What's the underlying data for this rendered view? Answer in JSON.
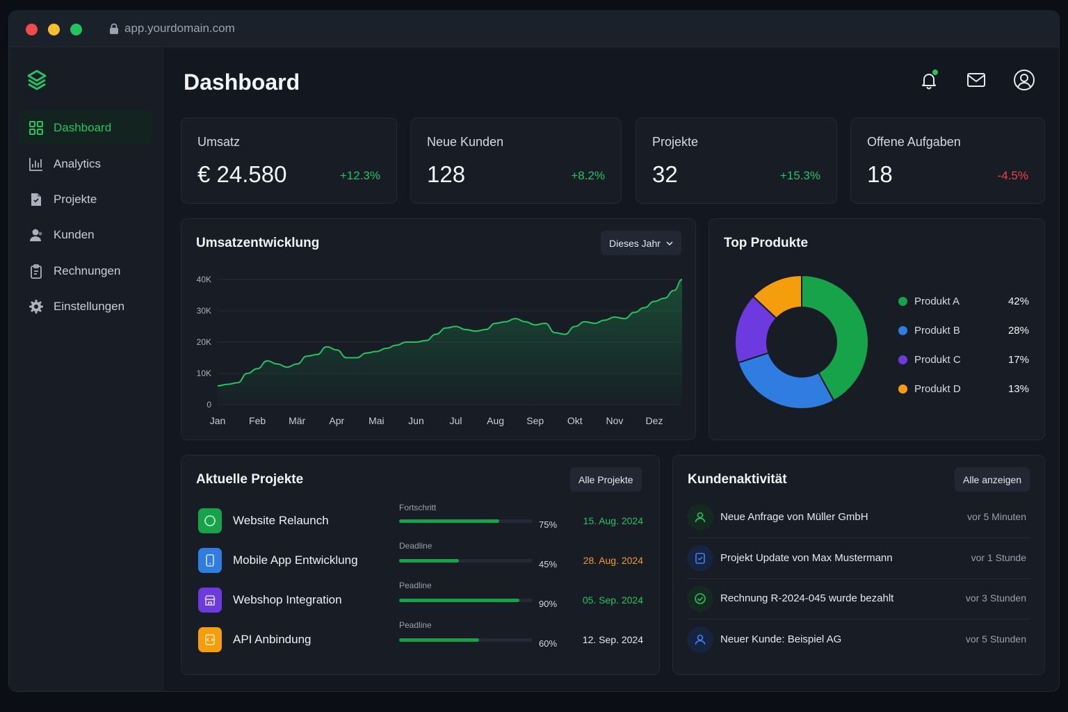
{
  "browser": {
    "url": "app.yourdomain.com"
  },
  "sidebar": {
    "items": [
      {
        "label": "Dashboard",
        "icon": "grid-icon"
      },
      {
        "label": "Analytics",
        "icon": "bar-chart-icon"
      },
      {
        "label": "Projekte",
        "icon": "folder-icon"
      },
      {
        "label": "Kunden",
        "icon": "users-icon"
      },
      {
        "label": "Rechnungen",
        "icon": "clipboard-icon"
      },
      {
        "label": "Einstellungen",
        "icon": "gear-icon"
      }
    ]
  },
  "header": {
    "title": "Dashboard"
  },
  "stats": [
    {
      "label": "Umsatz",
      "value": "€ 24.580",
      "change": "+12.3%"
    },
    {
      "label": "Neue Kunden",
      "value": "128",
      "change": "+8.2%"
    },
    {
      "label": "Projekte",
      "value": "32",
      "change": "+15.3%"
    },
    {
      "label": "Offene Aufgaben",
      "value": "18",
      "change": "-4.5%"
    }
  ],
  "colors": {
    "accent": "#22c55e",
    "positive": "#22c55e",
    "negative": "#ef4444",
    "warning": "#f59e0b"
  },
  "revenue_chart": {
    "title": "Umsatzentwicklung",
    "filter": "Dieses Jahr"
  },
  "products_chart": {
    "title": "Top Produkte"
  },
  "chart_data": [
    {
      "type": "area",
      "title": "Umsatzentwicklung",
      "categories": [
        "Jan",
        "Feb",
        "Mär",
        "Apr",
        "Mai",
        "Jun",
        "Jul",
        "Aug",
        "Sep",
        "Okt",
        "Nov",
        "Dez"
      ],
      "ytick_labels": [
        "0",
        "10K",
        "20K",
        "30K",
        "40K"
      ],
      "ylim": [
        0,
        40000
      ],
      "x": [
        0,
        0.25,
        0.5,
        0.75,
        1,
        1.25,
        1.5,
        1.75,
        2,
        2.25,
        2.5,
        2.75,
        3,
        3.25,
        3.5,
        3.75,
        4,
        4.25,
        4.5,
        4.75,
        5,
        5.25,
        5.5,
        5.75,
        6,
        6.25,
        6.5,
        6.75,
        7,
        7.25,
        7.5,
        7.75,
        8,
        8.25,
        8.5,
        8.75,
        9,
        9.25,
        9.5,
        9.75,
        10,
        10.25,
        10.5,
        10.75,
        11,
        11.25,
        11.5,
        11.7
      ],
      "values": [
        6000,
        6500,
        7000,
        10000,
        11500,
        14000,
        13000,
        12000,
        13000,
        15500,
        16000,
        18500,
        17500,
        15000,
        15000,
        16500,
        17000,
        18000,
        19000,
        20000,
        20000,
        20500,
        22500,
        24500,
        25000,
        24000,
        23500,
        24000,
        26000,
        26500,
        27500,
        26500,
        25500,
        26000,
        23000,
        22500,
        25000,
        26500,
        26000,
        27000,
        28000,
        27500,
        29500,
        31000,
        33000,
        34000,
        36500,
        40000
      ],
      "grid": true,
      "color": "#22c55e"
    },
    {
      "type": "pie",
      "title": "Top Produkte",
      "series": [
        {
          "name": "Produkt A",
          "value": 42,
          "label": "42%",
          "color": "#16a34a"
        },
        {
          "name": "Produkt B",
          "value": 28,
          "label": "28%",
          "color": "#2f7de1"
        },
        {
          "name": "Produkt C",
          "value": 17,
          "label": "17%",
          "color": "#6d3ae0"
        },
        {
          "name": "Produkt D",
          "value": 13,
          "label": "13%",
          "color": "#f59e0b"
        }
      ],
      "legend": "right"
    }
  ],
  "projects": {
    "title": "Aktuelle Projekte",
    "button": "Alle Projekte",
    "rows": [
      {
        "name": "Website Relaunch",
        "sub": "Fortschritt",
        "progress": 0.75,
        "pct": "75%",
        "date": "15. Aug. 2024",
        "date_color": "#22c55e",
        "icon_color": "#16a34a",
        "icon": "circle-icon"
      },
      {
        "name": "Mobile App Entwicklung",
        "sub": "Deadline",
        "progress": 0.45,
        "pct": "45%",
        "date": "28. Aug. 2024",
        "date_color": "#f59e0b",
        "icon_color": "#2f7de1",
        "icon": "phone-icon"
      },
      {
        "name": "Webshop Integration",
        "sub": "Peadline",
        "progress": 0.9,
        "pct": "90%",
        "date": "05. Sep. 2024",
        "date_color": "#22c55e",
        "icon_color": "#6d3ae0",
        "icon": "shop-icon"
      },
      {
        "name": "API Anbindung",
        "sub": "Peadline",
        "progress": 0.6,
        "pct": "60%",
        "date": "12. Sep. 2024",
        "date_color": "#e6e9ee",
        "icon_color": "#f59e0b",
        "icon": "code-icon"
      }
    ]
  },
  "activity": {
    "title": "Kundenaktivität",
    "button": "Alle anzeigen",
    "rows": [
      {
        "text": "Neue Anfrage von Müller GmbH",
        "time": "vor 5 Minuten",
        "icon": "user-icon",
        "color": "#22c55e",
        "bg": "#14291f"
      },
      {
        "text": "Projekt Update von Max Mustermann",
        "time": "vor 1 Stunde",
        "icon": "document-icon",
        "color": "#3b82f6",
        "bg": "#172440"
      },
      {
        "text": "Rechnung R-2024-045 wurde bezahlt",
        "time": "vor 3 Stunden",
        "icon": "check-icon",
        "color": "#22c55e",
        "bg": "#14291f"
      },
      {
        "text": "Neuer Kunde: Beispiel AG",
        "time": "vor 5 Stunden",
        "icon": "user-icon",
        "color": "#3b82f6",
        "bg": "#172440"
      }
    ]
  }
}
